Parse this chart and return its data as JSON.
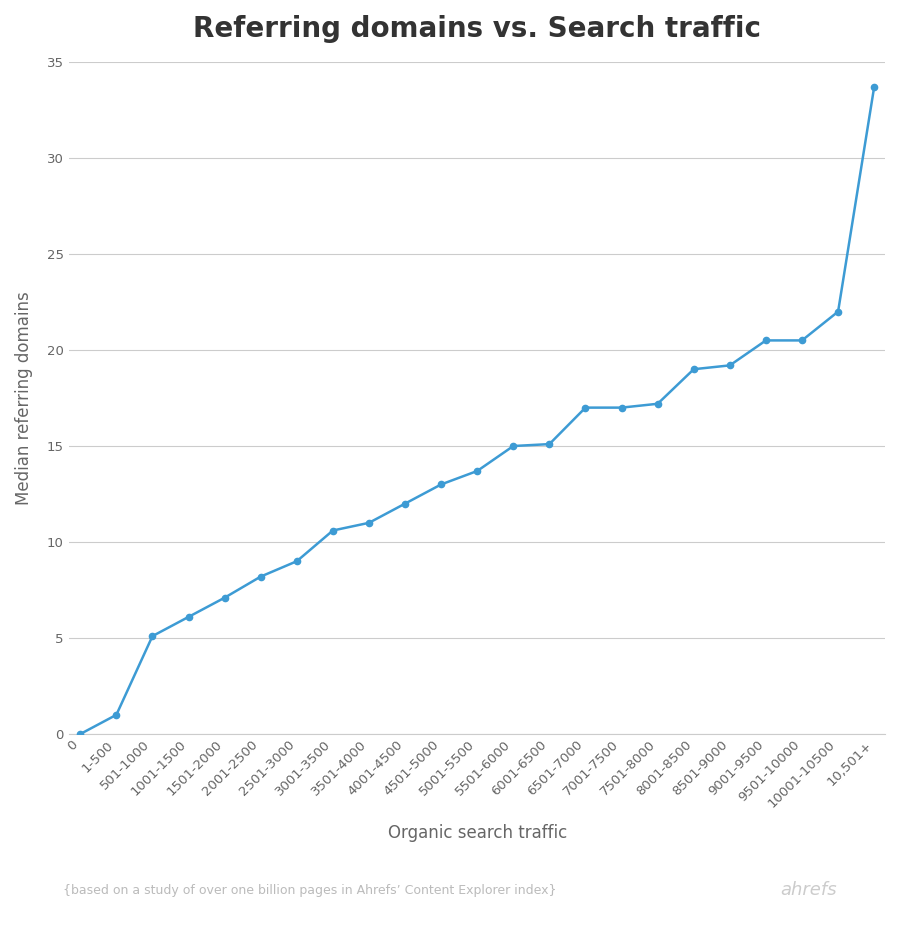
{
  "title": "Referring domains vs. Search traffic",
  "xlabel": "Organic search traffic",
  "ylabel": "Median referring domains",
  "footnote": "{based on a study of over one billion pages in Ahrefs’ Content Explorer index}",
  "brand": "ahrefs",
  "categories": [
    "0",
    "1-500",
    "501-1000",
    "1001-1500",
    "1501-2000",
    "2001-2500",
    "2501-3000",
    "3001-3500",
    "3501-4000",
    "4001-4500",
    "4501-5000",
    "5001-5500",
    "5501-6000",
    "6001-6500",
    "6501-7000",
    "7001-7500",
    "7501-8000",
    "8001-8500",
    "8501-9000",
    "9001-9500",
    "9501-10000",
    "10001-10500",
    "10,501+"
  ],
  "values": [
    0,
    1,
    5.1,
    6.1,
    7.1,
    8.2,
    9.0,
    10.6,
    11.0,
    12.0,
    13.0,
    13.7,
    15.0,
    15.1,
    17.0,
    17.0,
    17.2,
    19.0,
    19.2,
    20.5,
    20.5,
    22.0,
    33.7
  ],
  "line_color": "#3d9bd4",
  "marker_color": "#3d9bd4",
  "background_color": "#ffffff",
  "grid_color": "#cccccc",
  "title_color": "#333333",
  "axis_label_color": "#666666",
  "tick_color": "#666666",
  "footnote_color": "#bbbbbb",
  "brand_color": "#cccccc",
  "ylim": [
    0,
    35
  ],
  "yticks": [
    0,
    5,
    10,
    15,
    20,
    25,
    30,
    35
  ],
  "title_fontsize": 20,
  "axis_label_fontsize": 12,
  "tick_fontsize": 9.5,
  "footnote_fontsize": 9,
  "brand_fontsize": 13
}
